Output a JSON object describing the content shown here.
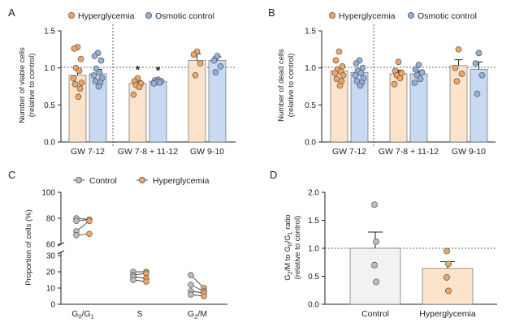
{
  "colors": {
    "hyper_fill": "#FCE4CC",
    "hyper_dot": "#F2A561",
    "osmotic_fill": "#C8DAF2",
    "osmotic_dot": "#8FB0DC",
    "control_fill": "#F2F2F2",
    "control_dot": "#BDBDBD",
    "edge": "#555555"
  },
  "chart_data": [
    {
      "panel": "A",
      "type": "bar",
      "ylabel": [
        "Number of viable cells",
        "(relative to control)"
      ],
      "ylim": [
        0,
        1.5
      ],
      "yticks": [
        "0.0",
        "0.5",
        "1.0",
        "1.5"
      ],
      "reference_line": 1.0,
      "legend": [
        "Hyperglycemia",
        "Osmotic control"
      ],
      "categories": [
        "GW 7-12",
        "GW 7-8 + 11-12",
        "GW 9-10"
      ],
      "series": [
        {
          "name": "Hyperglycemia",
          "values": [
            0.9,
            0.79,
            1.1
          ],
          "errors": [
            0.08,
            0.04,
            0.09
          ],
          "points": [
            [
              1.28,
              1.26,
              1.12,
              1.0,
              0.96,
              0.86,
              0.8,
              0.78,
              0.72,
              0.61
            ],
            [
              0.86,
              0.82,
              0.79,
              0.77,
              0.74,
              0.64
            ],
            [
              1.22,
              1.18,
              1.06,
              0.9
            ]
          ]
        },
        {
          "name": "Osmotic control",
          "values": [
            0.92,
            0.82,
            1.1
          ],
          "errors": [
            0.06,
            0.03,
            0.05
          ],
          "points": [
            [
              1.2,
              1.16,
              1.1,
              0.99,
              0.94,
              0.9,
              0.86,
              0.82,
              0.8,
              0.75
            ],
            [
              0.84,
              0.83,
              0.82,
              0.81,
              0.8,
              0.79
            ],
            [
              1.16,
              1.1,
              1.02,
              0.94
            ]
          ]
        }
      ],
      "significance": [
        {
          "category": "GW 7-8 + 11-12",
          "series": "Hyperglycemia",
          "label": "*"
        },
        {
          "category": "GW 7-8 + 11-12",
          "series": "Osmotic control",
          "label": "*"
        }
      ]
    },
    {
      "panel": "B",
      "type": "bar",
      "ylabel": [
        "Number of dead cells",
        "(relative to control)"
      ],
      "ylim": [
        0,
        1.5
      ],
      "yticks": [
        "0.0",
        "0.5",
        "1.0",
        "1.5"
      ],
      "reference_line": 1.0,
      "legend": [
        "Hyperglycemia",
        "Osmotic control"
      ],
      "categories": [
        "GW 7-12",
        "GW 7-8 + 11-12",
        "GW 9-10"
      ],
      "series": [
        {
          "name": "Hyperglycemia",
          "values": [
            0.96,
            0.92,
            1.03
          ],
          "errors": [
            0.04,
            0.05,
            0.08
          ],
          "points": [
            [
              1.22,
              1.1,
              1.02,
              0.98,
              0.95,
              0.93,
              0.9,
              0.85,
              0.82,
              0.76
            ],
            [
              1.08,
              0.96,
              0.93,
              0.9,
              0.86,
              0.78
            ],
            [
              1.25,
              1.0,
              0.92,
              0.82
            ]
          ]
        },
        {
          "name": "Osmotic control",
          "values": [
            0.94,
            0.92,
            0.98
          ],
          "errors": [
            0.04,
            0.04,
            0.1
          ],
          "points": [
            [
              1.1,
              1.06,
              1.0,
              0.96,
              0.93,
              0.9,
              0.86,
              0.82,
              0.8,
              0.76
            ],
            [
              1.04,
              0.98,
              0.94,
              0.9,
              0.85,
              0.8
            ],
            [
              1.2,
              1.06,
              0.9,
              0.65
            ]
          ]
        }
      ]
    },
    {
      "panel": "C",
      "type": "scatter",
      "ylabel": "Proportion of cells  (%)",
      "yticks_upper": [
        "60",
        "80",
        "100"
      ],
      "yticks_lower": [
        "0",
        "10",
        "20",
        "30"
      ],
      "ylim_upper": [
        60,
        100
      ],
      "ylim_lower": [
        0,
        32
      ],
      "legend": [
        "Control",
        "Hyperglycemia"
      ],
      "categories": [
        "G0/G1",
        "S",
        "G2/M"
      ],
      "category_labels": [
        {
          "main": "G",
          "sub1": "0",
          "mid": "/G",
          "sub2": "1"
        },
        {
          "main": "S",
          "sub1": "",
          "mid": "",
          "sub2": ""
        },
        {
          "main": "G",
          "sub1": "2",
          "mid": "/M",
          "sub2": ""
        }
      ],
      "series": [
        {
          "name": "Control",
          "values": [
            [
              80,
              78,
              70,
              67
            ],
            [
              20,
              18,
              17,
              15
            ],
            [
              18,
              12,
              8,
              6
            ]
          ]
        },
        {
          "name": "Hyperglycemia",
          "values": [
            [
              79,
              79,
              78,
              68
            ],
            [
              20,
              19,
              16,
              14
            ],
            [
              10,
              8,
              7,
              5
            ]
          ]
        }
      ]
    },
    {
      "panel": "D",
      "type": "bar",
      "ylabel": "G2/M to G0/G1 ratio",
      "ylabel2": "(relative to control)",
      "ylim": [
        0,
        2.0
      ],
      "yticks": [
        "0.0",
        "0.5",
        "1.0",
        "1.5",
        "2.0"
      ],
      "reference_line": 1.0,
      "categories": [
        "Control",
        "Hyperglycemia"
      ],
      "values": [
        1.0,
        0.64
      ],
      "errors": [
        0.29,
        0.12
      ],
      "points": [
        [
          1.78,
          1.12,
          0.7,
          0.4
        ],
        [
          0.95,
          0.72,
          0.48,
          0.24
        ]
      ]
    }
  ],
  "panel_labels": [
    "A",
    "B",
    "C",
    "D"
  ]
}
